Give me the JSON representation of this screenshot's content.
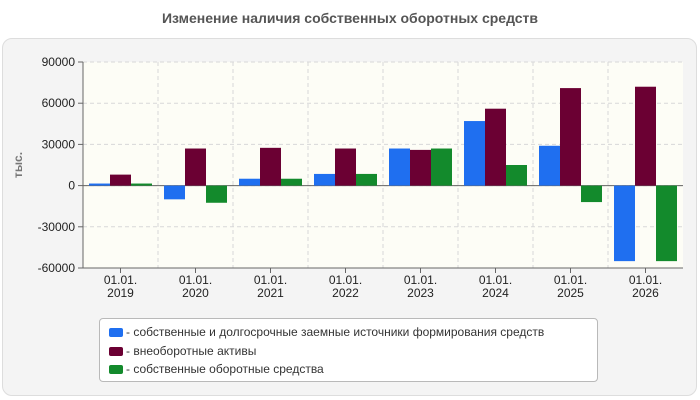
{
  "chart_data": {
    "type": "bar",
    "title": "Изменение наличия собственных оборотных средств",
    "ylabel": "тыс.",
    "xlabel": "",
    "ylim": [
      -60000,
      90000
    ],
    "yticks": [
      90000,
      60000,
      30000,
      0,
      -30000,
      -60000
    ],
    "ytick_labels": [
      "90000",
      "60000",
      "30000",
      "0",
      "-30000",
      "-60000"
    ],
    "categories": [
      "01.01.\n2019",
      "01.01.\n2020",
      "01.01.\n2021",
      "01.01.\n2022",
      "01.01.\n2023",
      "01.01.\n2024",
      "01.01.\n2025",
      "01.01.\n2026"
    ],
    "series": [
      {
        "name": "- собственные и долгосрочные заемные источники формирования средств",
        "color": "#1f6ff0",
        "values": [
          1500,
          -10000,
          5000,
          8500,
          27000,
          47000,
          29000,
          -55000
        ]
      },
      {
        "name": "- внеоборотные активы",
        "color": "#6b0033",
        "values": [
          8000,
          27000,
          27500,
          27000,
          26000,
          56000,
          71000,
          72000
        ]
      },
      {
        "name": "- собственные оборотные средства",
        "color": "#138a2c",
        "values": [
          1500,
          -12500,
          5000,
          8500,
          27000,
          15000,
          -12000,
          -55000
        ]
      }
    ],
    "grid": true,
    "legend_position": "bottom"
  }
}
